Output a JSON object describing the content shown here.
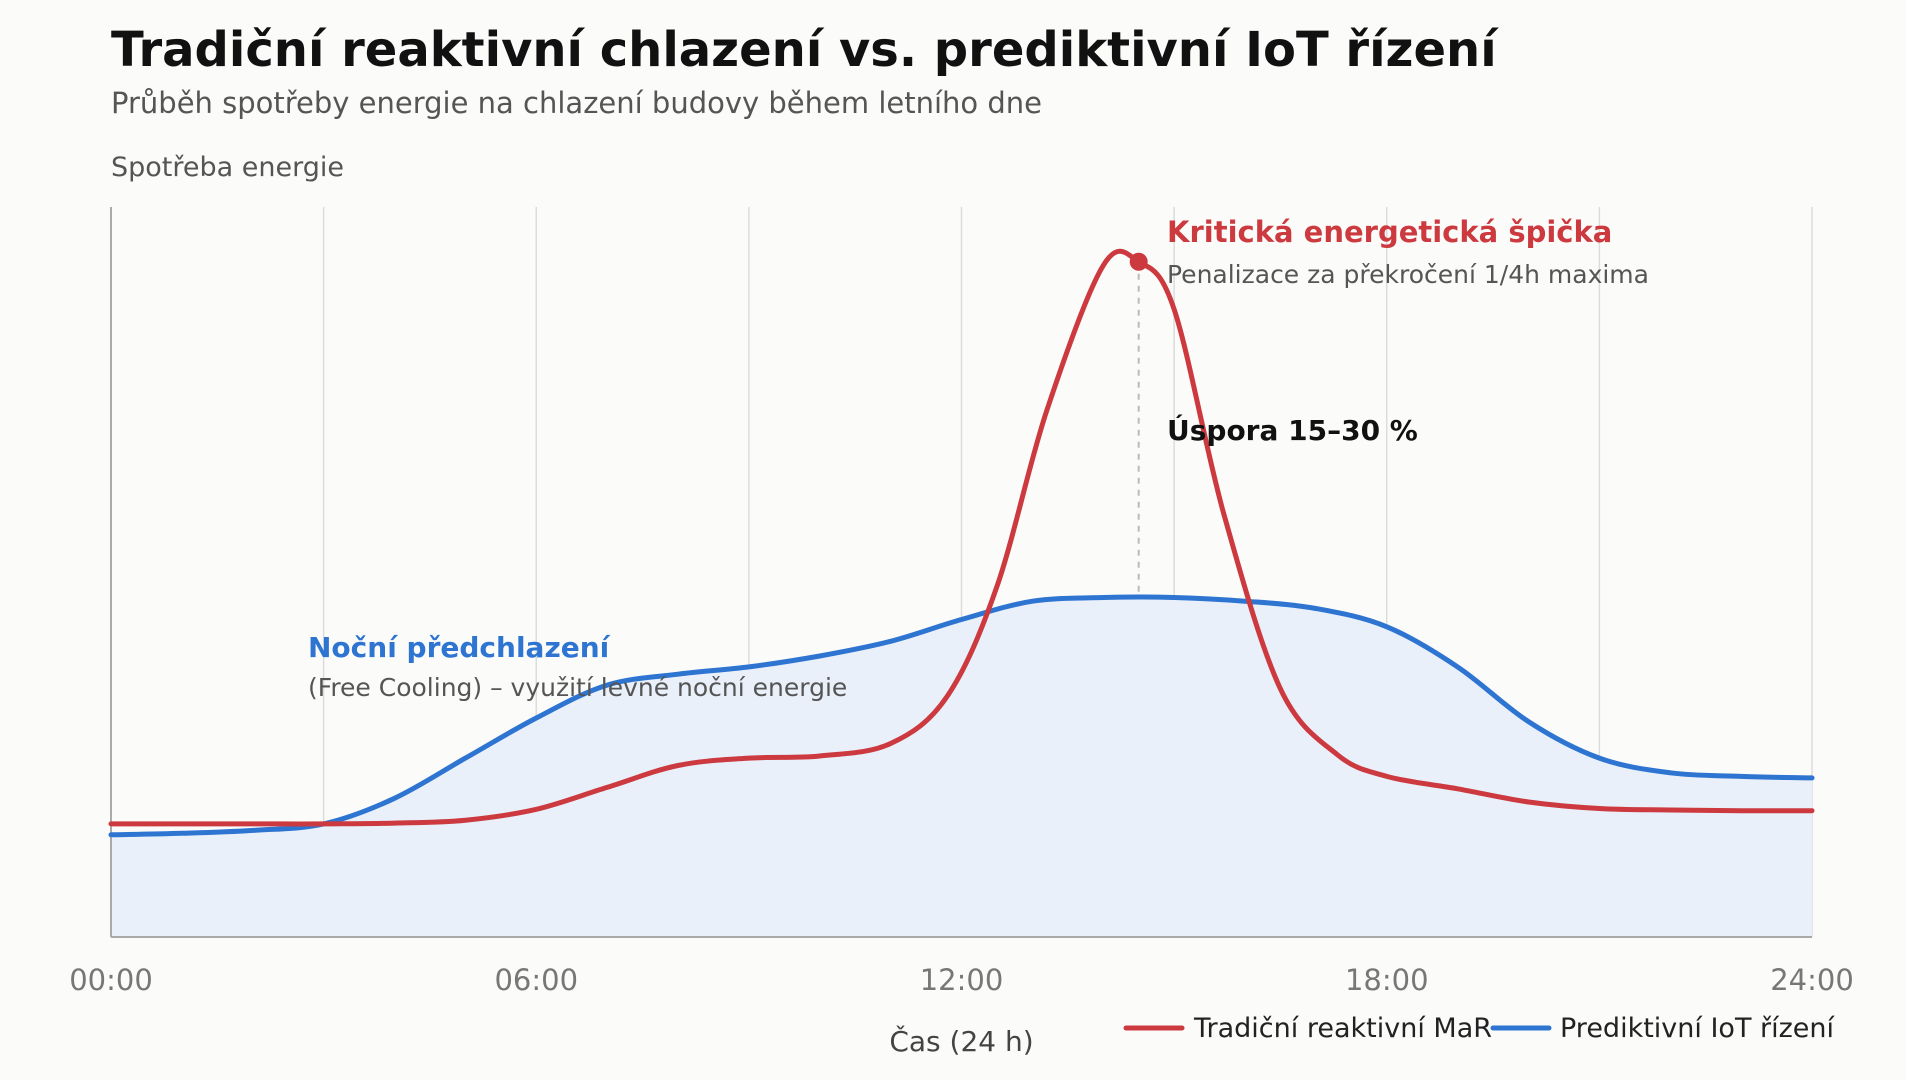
{
  "chart_data": {
    "type": "line",
    "title": "Tradiční reaktivní chlazení vs. prediktivní IoT řízení",
    "subtitle": "Průběh spotřeby energie na chlazení budovy během letního dne",
    "ylabel": "Spotřeba energie",
    "xlabel": "Čas (24 h)",
    "xlim": [
      0,
      24
    ],
    "ylim": [
      0,
      100
    ],
    "grid": "vertical",
    "xticks": [
      "00:00",
      "06:00",
      "12:00",
      "18:00",
      "24:00"
    ],
    "xtick_values": [
      0,
      6,
      12,
      18,
      24
    ],
    "series": [
      {
        "name": "Tradiční reaktivní MaR",
        "color": "#cc3a3f",
        "x": [
          0,
          1,
          2,
          3,
          4,
          5,
          6,
          7,
          8,
          9,
          10,
          11,
          11.8,
          12.5,
          13.2,
          14,
          14.5,
          15,
          15.7,
          16.5,
          17.3,
          18,
          19,
          20,
          21,
          22,
          23,
          24
        ],
        "y": [
          15.5,
          15.5,
          15.5,
          15.5,
          15.6,
          16,
          17.5,
          20.5,
          23.5,
          24.5,
          24.8,
          26.5,
          33,
          48,
          72,
          92,
          92.5,
          86,
          58,
          34,
          25,
          22,
          20.3,
          18.5,
          17.6,
          17.4,
          17.3,
          17.3
        ]
      },
      {
        "name": "Prediktivní IoT řízení",
        "color": "#2e74d1",
        "x": [
          0,
          1,
          2,
          3,
          4,
          5,
          6,
          7,
          8,
          9,
          10,
          11,
          12,
          13,
          14,
          15,
          16,
          17,
          18,
          19,
          20,
          21,
          22,
          23,
          24
        ],
        "y": [
          14,
          14.2,
          14.6,
          15.5,
          19,
          24.5,
          30,
          34.5,
          36,
          37,
          38.5,
          40.5,
          43.5,
          46,
          46.5,
          46.5,
          46,
          45,
          42.5,
          37,
          29.5,
          24.5,
          22.5,
          22,
          21.8
        ]
      }
    ],
    "area_fill": {
      "series": "Prediktivní IoT řízení",
      "color": "#e9f0fa"
    },
    "annotations": {
      "peak": {
        "x": 14.5,
        "y": 92.5,
        "title": "Kritická energetická špička",
        "text": "Penalizace za překročení 1/4h maxima",
        "color": "#cc3a3f"
      },
      "savings": {
        "text": "Úspora 15–30 %",
        "x": 14.5,
        "y": 69
      },
      "precool": {
        "title": "Noční předchlazení",
        "text": "(Free Cooling) – využití levné noční energie",
        "color": "#2e74d1",
        "x": 2.8,
        "y": 38
      }
    },
    "legend": "bottom-right"
  }
}
